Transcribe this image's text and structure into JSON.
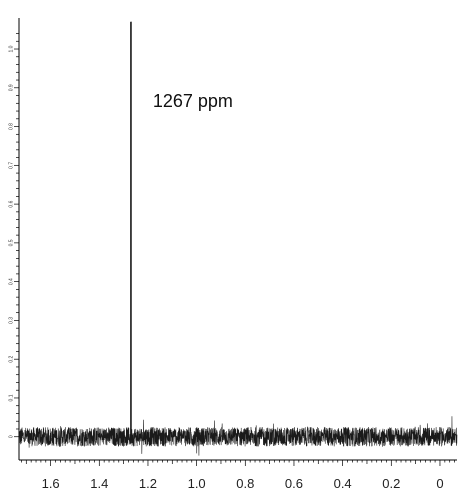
{
  "chart_data": {
    "type": "line",
    "title": "",
    "xlabel": "",
    "ylabel": "",
    "x_reversed": true,
    "xlim": [
      1.73,
      -0.07
    ],
    "ylim": [
      -0.06,
      1.08
    ],
    "x_ticks": [
      {
        "value": 1.6,
        "label": "1.6"
      },
      {
        "value": 1.4,
        "label": "1.4"
      },
      {
        "value": 1.2,
        "label": "1.2"
      },
      {
        "value": 1.0,
        "label": "1.0"
      },
      {
        "value": 0.8,
        "label": "0.8"
      },
      {
        "value": 0.6,
        "label": "0.6"
      },
      {
        "value": 0.4,
        "label": "0.4"
      },
      {
        "value": 0.2,
        "label": "0.2"
      },
      {
        "value": 0.0,
        "label": "0"
      }
    ],
    "y_ticks": [
      {
        "value": 0.0,
        "label": "0"
      },
      {
        "value": 0.1,
        "label": "0.1"
      },
      {
        "value": 0.2,
        "label": "0.2"
      },
      {
        "value": 0.3,
        "label": "0.3"
      },
      {
        "value": 0.4,
        "label": "0.4"
      },
      {
        "value": 0.5,
        "label": "0.5"
      },
      {
        "value": 0.6,
        "label": "0.6"
      },
      {
        "value": 0.7,
        "label": "0.7"
      },
      {
        "value": 0.8,
        "label": "0.8"
      },
      {
        "value": 0.9,
        "label": "0.9"
      },
      {
        "value": 1.0,
        "label": "1.0"
      }
    ],
    "series": [
      {
        "color": "#1a1a1a",
        "noise_amplitude": 0.025,
        "baseline": 0.0,
        "peaks": [
          {
            "x": 1.27,
            "y": 1.07
          }
        ]
      }
    ],
    "annotations": [
      {
        "text": "1267 ppm",
        "x": 1.18,
        "y": 0.85
      }
    ],
    "grid": false,
    "legend": "none"
  }
}
